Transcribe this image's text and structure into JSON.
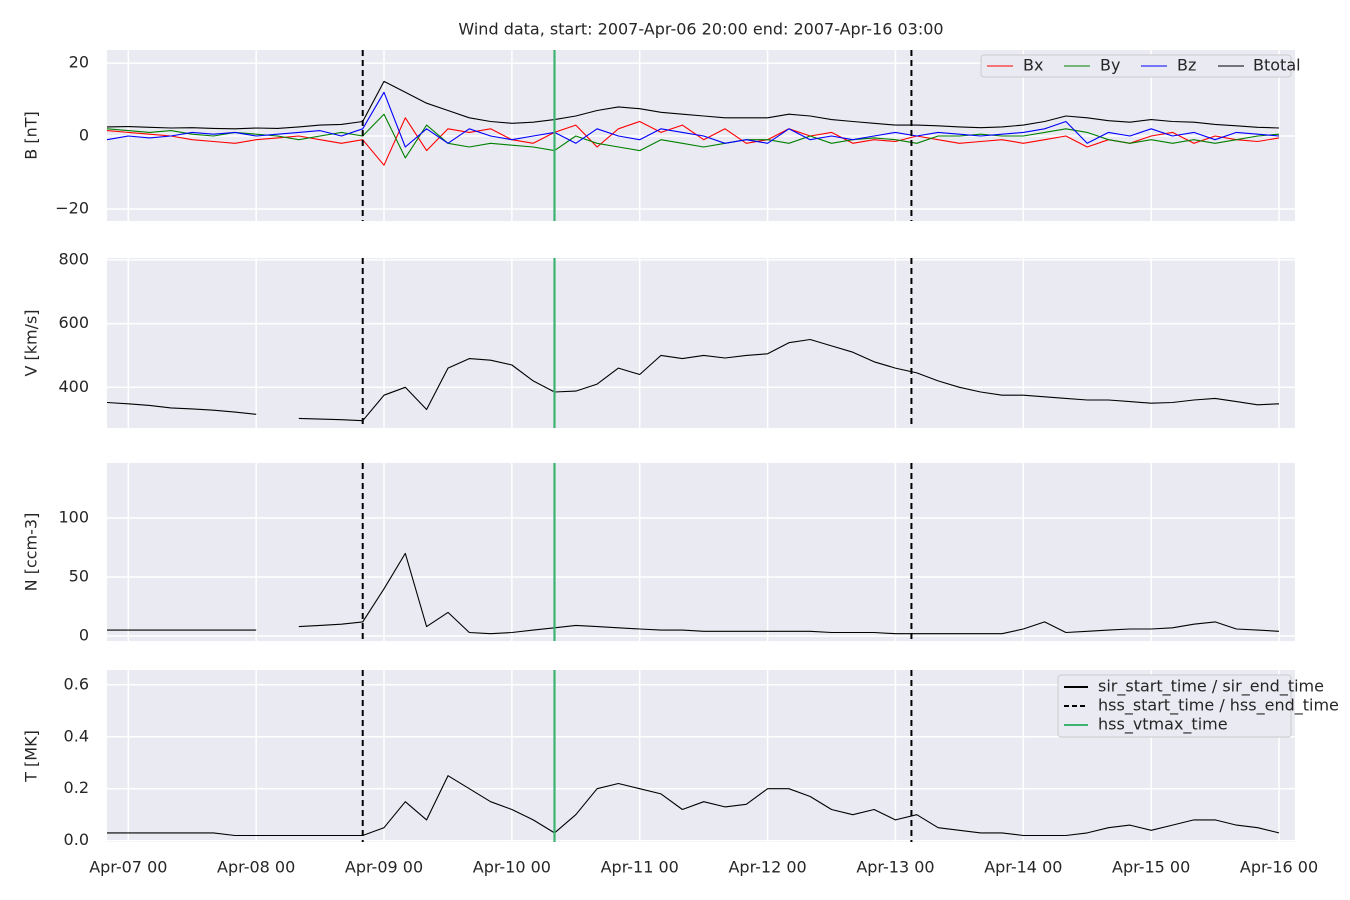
{
  "chart_data": [
    {
      "type": "line",
      "title": "Wind data, start: 2007-Apr-06 20:00  end: 2007-Apr-16 03:00",
      "y_label": "B [nT]",
      "xlim": [
        "2007-04-06T20:00",
        "2007-04-16T03:00"
      ],
      "ylim": [
        -23.3,
        23.6
      ],
      "yticks": [
        {
          "value": -20,
          "label": "−20"
        },
        0,
        20
      ],
      "grid": true,
      "legend": "upper right",
      "x": [
        "2007-04-06T20:00",
        "2007-04-07T00:00",
        "2007-04-07T04:00",
        "2007-04-07T08:00",
        "2007-04-07T12:00",
        "2007-04-07T16:00",
        "2007-04-07T20:00",
        "2007-04-08T00:00",
        "2007-04-08T04:00",
        "2007-04-08T08:00",
        "2007-04-08T12:00",
        "2007-04-08T16:00",
        "2007-04-08T20:00",
        "2007-04-09T00:00",
        "2007-04-09T04:00",
        "2007-04-09T08:00",
        "2007-04-09T12:00",
        "2007-04-09T16:00",
        "2007-04-09T20:00",
        "2007-04-10T00:00",
        "2007-04-10T04:00",
        "2007-04-10T08:00",
        "2007-04-10T12:00",
        "2007-04-10T16:00",
        "2007-04-10T20:00",
        "2007-04-11T00:00",
        "2007-04-11T04:00",
        "2007-04-11T08:00",
        "2007-04-11T12:00",
        "2007-04-11T16:00",
        "2007-04-11T20:00",
        "2007-04-12T00:00",
        "2007-04-12T04:00",
        "2007-04-12T08:00",
        "2007-04-12T12:00",
        "2007-04-12T16:00",
        "2007-04-12T20:00",
        "2007-04-13T00:00",
        "2007-04-13T04:00",
        "2007-04-13T08:00",
        "2007-04-13T12:00",
        "2007-04-13T16:00",
        "2007-04-13T20:00",
        "2007-04-14T00:00",
        "2007-04-14T04:00",
        "2007-04-14T08:00",
        "2007-04-14T12:00",
        "2007-04-14T16:00",
        "2007-04-14T20:00",
        "2007-04-15T00:00",
        "2007-04-15T04:00",
        "2007-04-15T08:00",
        "2007-04-15T12:00",
        "2007-04-15T16:00",
        "2007-04-15T20:00",
        "2007-04-16T00:00"
      ],
      "series": [
        {
          "name": "Bx",
          "color": "#ff0000",
          "values": [
            1.5,
            1,
            0.5,
            0,
            -1,
            -1.5,
            -2,
            -1,
            -0.5,
            0,
            -1,
            -2,
            -1,
            -8,
            5,
            -4,
            2,
            1,
            2,
            -1,
            -2,
            1,
            3,
            -3,
            2,
            4,
            1,
            3,
            -1,
            2,
            -2,
            -1,
            2,
            0,
            1,
            -2,
            -1,
            -1.5,
            0,
            -1,
            -2,
            -1.5,
            -1,
            -2,
            -1,
            0,
            -3,
            -1,
            -2,
            0,
            1,
            -2,
            0,
            -1,
            -1.5,
            -0.5
          ]
        },
        {
          "name": "By",
          "color": "#008000",
          "values": [
            2,
            1.5,
            1,
            1.5,
            0.5,
            0,
            1,
            0.5,
            0,
            -1,
            0,
            1,
            0,
            6,
            -6,
            3,
            -2,
            -3,
            -2,
            -2.5,
            -3,
            -4,
            0,
            -2,
            -3,
            -4,
            -1,
            -2,
            -3,
            -2,
            -1,
            -1,
            -2,
            0,
            -2,
            -1,
            -0.5,
            -1,
            -2,
            0,
            0,
            0.5,
            0,
            0,
            1,
            2,
            1,
            -1,
            -2,
            -1,
            -2,
            -1,
            -2,
            -1,
            0,
            0.5
          ]
        },
        {
          "name": "Bz",
          "color": "#0000ff",
          "values": [
            -1,
            0,
            -0.5,
            0,
            1,
            0.5,
            1,
            0,
            0.5,
            1,
            1.5,
            0,
            2,
            12,
            -3,
            2,
            -2,
            2,
            0,
            -1,
            0,
            1,
            -2,
            2,
            0,
            -1,
            2,
            1,
            0,
            -2,
            -1,
            -2,
            2,
            -1,
            0,
            -1,
            0,
            1,
            0,
            1,
            0.5,
            0,
            0.5,
            1,
            2,
            4,
            -2,
            1,
            0,
            2,
            0,
            1,
            -1,
            1,
            0.5,
            0
          ]
        },
        {
          "name": "Btotal",
          "color": "#000000",
          "values": [
            2.5,
            2.6,
            2.4,
            2.2,
            2.3,
            2.1,
            2.0,
            2.2,
            2.1,
            2.5,
            3.0,
            3.2,
            4.0,
            15,
            12,
            9,
            7,
            5,
            4,
            3.5,
            3.8,
            4.5,
            5.5,
            7,
            8,
            7.5,
            6.5,
            6,
            5.5,
            5,
            5,
            5,
            6,
            5.5,
            4.5,
            4,
            3.5,
            3,
            3,
            2.8,
            2.5,
            2.3,
            2.5,
            3,
            4,
            5.5,
            5,
            4.2,
            3.8,
            4.5,
            4,
            3.8,
            3.2,
            2.8,
            2.4,
            2.2
          ]
        }
      ],
      "vlines": [
        {
          "x": "2007-04-08T20:00",
          "color": "#000000",
          "dashed": true
        },
        {
          "x": "2007-04-10T08:00",
          "color": "#3cb371",
          "dashed": false
        },
        {
          "x": "2007-04-13T03:00",
          "color": "#000000",
          "dashed": true
        }
      ]
    },
    {
      "type": "line",
      "y_label": "V [km/s]",
      "xlim": [
        "2007-04-06T20:00",
        "2007-04-16T03:00"
      ],
      "ylim": [
        272,
        806
      ],
      "yticks": [
        400,
        600,
        800
      ],
      "grid": true,
      "x": [
        "2007-04-06T20:00",
        "2007-04-07T00:00",
        "2007-04-07T04:00",
        "2007-04-07T08:00",
        "2007-04-07T12:00",
        "2007-04-07T16:00",
        "2007-04-07T20:00",
        "2007-04-08T00:00",
        "2007-04-08T04:00",
        "2007-04-08T08:00",
        "2007-04-08T12:00",
        "2007-04-08T16:00",
        "2007-04-08T20:00",
        "2007-04-09T00:00",
        "2007-04-09T04:00",
        "2007-04-09T08:00",
        "2007-04-09T12:00",
        "2007-04-09T16:00",
        "2007-04-09T20:00",
        "2007-04-10T00:00",
        "2007-04-10T04:00",
        "2007-04-10T08:00",
        "2007-04-10T12:00",
        "2007-04-10T16:00",
        "2007-04-10T20:00",
        "2007-04-11T00:00",
        "2007-04-11T04:00",
        "2007-04-11T08:00",
        "2007-04-11T12:00",
        "2007-04-11T16:00",
        "2007-04-11T20:00",
        "2007-04-12T00:00",
        "2007-04-12T04:00",
        "2007-04-12T08:00",
        "2007-04-12T12:00",
        "2007-04-12T16:00",
        "2007-04-12T20:00",
        "2007-04-13T00:00",
        "2007-04-13T04:00",
        "2007-04-13T08:00",
        "2007-04-13T12:00",
        "2007-04-13T16:00",
        "2007-04-13T20:00",
        "2007-04-14T00:00",
        "2007-04-14T04:00",
        "2007-04-14T08:00",
        "2007-04-14T12:00",
        "2007-04-14T16:00",
        "2007-04-14T20:00",
        "2007-04-15T00:00",
        "2007-04-15T04:00",
        "2007-04-15T08:00",
        "2007-04-15T12:00",
        "2007-04-15T16:00",
        "2007-04-15T20:00",
        "2007-04-16T00:00"
      ],
      "series": [
        {
          "color": "#000000",
          "values": [
            352,
            348,
            343,
            335,
            332,
            328,
            322,
            315,
            null,
            302,
            300,
            298,
            295,
            375,
            400,
            330,
            460,
            490,
            485,
            470,
            420,
            385,
            388,
            410,
            460,
            440,
            500,
            490,
            500,
            492,
            500,
            505,
            540,
            550,
            530,
            510,
            480,
            460,
            445,
            420,
            400,
            385,
            375,
            375,
            370,
            365,
            360,
            360,
            355,
            350,
            352,
            360,
            365,
            355,
            345,
            348
          ]
        }
      ],
      "vlines": [
        {
          "x": "2007-04-08T20:00",
          "color": "#000000",
          "dashed": true
        },
        {
          "x": "2007-04-10T08:00",
          "color": "#3cb371",
          "dashed": false
        },
        {
          "x": "2007-04-13T03:00",
          "color": "#000000",
          "dashed": true
        }
      ]
    },
    {
      "type": "line",
      "y_label": "N [ccm-3]",
      "xlim": [
        "2007-04-06T20:00",
        "2007-04-16T03:00"
      ],
      "ylim": [
        -4.2,
        146.6
      ],
      "yticks": [
        0,
        50,
        100
      ],
      "grid": true,
      "x": [
        "2007-04-06T20:00",
        "2007-04-07T00:00",
        "2007-04-07T04:00",
        "2007-04-07T08:00",
        "2007-04-07T12:00",
        "2007-04-07T16:00",
        "2007-04-07T20:00",
        "2007-04-08T00:00",
        "2007-04-08T04:00",
        "2007-04-08T08:00",
        "2007-04-08T12:00",
        "2007-04-08T16:00",
        "2007-04-08T20:00",
        "2007-04-09T00:00",
        "2007-04-09T04:00",
        "2007-04-09T08:00",
        "2007-04-09T12:00",
        "2007-04-09T16:00",
        "2007-04-09T20:00",
        "2007-04-10T00:00",
        "2007-04-10T04:00",
        "2007-04-10T08:00",
        "2007-04-10T12:00",
        "2007-04-10T16:00",
        "2007-04-10T20:00",
        "2007-04-11T00:00",
        "2007-04-11T04:00",
        "2007-04-11T08:00",
        "2007-04-11T12:00",
        "2007-04-11T16:00",
        "2007-04-11T20:00",
        "2007-04-12T00:00",
        "2007-04-12T04:00",
        "2007-04-12T08:00",
        "2007-04-12T12:00",
        "2007-04-12T16:00",
        "2007-04-12T20:00",
        "2007-04-13T00:00",
        "2007-04-13T04:00",
        "2007-04-13T08:00",
        "2007-04-13T12:00",
        "2007-04-13T16:00",
        "2007-04-13T20:00",
        "2007-04-14T00:00",
        "2007-04-14T04:00",
        "2007-04-14T08:00",
        "2007-04-14T12:00",
        "2007-04-14T16:00",
        "2007-04-14T20:00",
        "2007-04-15T00:00",
        "2007-04-15T04:00",
        "2007-04-15T08:00",
        "2007-04-15T12:00",
        "2007-04-15T16:00",
        "2007-04-15T20:00",
        "2007-04-16T00:00"
      ],
      "series": [
        {
          "color": "#000000",
          "values": [
            5,
            5,
            5,
            5,
            5,
            5,
            5,
            5,
            null,
            8,
            9,
            10,
            12,
            40,
            70,
            8,
            20,
            3,
            2,
            3,
            5,
            7,
            9,
            8,
            7,
            6,
            5,
            5,
            4,
            4,
            4,
            4,
            4,
            4,
            3,
            3,
            3,
            2,
            2,
            2,
            2,
            2,
            2,
            6,
            12,
            3,
            4,
            5,
            6,
            6,
            7,
            10,
            12,
            6,
            5,
            4
          ]
        }
      ],
      "vlines": [
        {
          "x": "2007-04-08T20:00",
          "color": "#000000",
          "dashed": true
        },
        {
          "x": "2007-04-10T08:00",
          "color": "#3cb371",
          "dashed": false
        },
        {
          "x": "2007-04-13T03:00",
          "color": "#000000",
          "dashed": true
        }
      ]
    },
    {
      "type": "line",
      "y_label": "T [MK]",
      "xlim": [
        "2007-04-06T20:00",
        "2007-04-16T03:00"
      ],
      "ylim": [
        -0.005,
        0.657
      ],
      "yticks": [
        {
          "value": 0,
          "label": "0.0"
        },
        0.2,
        0.4,
        0.6
      ],
      "grid": true,
      "legend": "upper right",
      "xticks": [
        {
          "value": "2007-04-07T00:00",
          "label": "Apr-07 00"
        },
        {
          "value": "2007-04-08T00:00",
          "label": "Apr-08 00"
        },
        {
          "value": "2007-04-09T00:00",
          "label": "Apr-09 00"
        },
        {
          "value": "2007-04-10T00:00",
          "label": "Apr-10 00"
        },
        {
          "value": "2007-04-11T00:00",
          "label": "Apr-11 00"
        },
        {
          "value": "2007-04-12T00:00",
          "label": "Apr-12 00"
        },
        {
          "value": "2007-04-13T00:00",
          "label": "Apr-13 00"
        },
        {
          "value": "2007-04-14T00:00",
          "label": "Apr-14 00"
        },
        {
          "value": "2007-04-15T00:00",
          "label": "Apr-15 00"
        },
        {
          "value": "2007-04-16T00:00",
          "label": "Apr-16 00"
        }
      ],
      "x": [
        "2007-04-06T20:00",
        "2007-04-07T00:00",
        "2007-04-07T04:00",
        "2007-04-07T08:00",
        "2007-04-07T12:00",
        "2007-04-07T16:00",
        "2007-04-07T20:00",
        "2007-04-08T00:00",
        "2007-04-08T04:00",
        "2007-04-08T08:00",
        "2007-04-08T12:00",
        "2007-04-08T16:00",
        "2007-04-08T20:00",
        "2007-04-09T00:00",
        "2007-04-09T04:00",
        "2007-04-09T08:00",
        "2007-04-09T12:00",
        "2007-04-09T16:00",
        "2007-04-09T20:00",
        "2007-04-10T00:00",
        "2007-04-10T04:00",
        "2007-04-10T08:00",
        "2007-04-10T12:00",
        "2007-04-10T16:00",
        "2007-04-10T20:00",
        "2007-04-11T00:00",
        "2007-04-11T04:00",
        "2007-04-11T08:00",
        "2007-04-11T12:00",
        "2007-04-11T16:00",
        "2007-04-11T20:00",
        "2007-04-12T00:00",
        "2007-04-12T04:00",
        "2007-04-12T08:00",
        "2007-04-12T12:00",
        "2007-04-12T16:00",
        "2007-04-12T20:00",
        "2007-04-13T00:00",
        "2007-04-13T04:00",
        "2007-04-13T08:00",
        "2007-04-13T12:00",
        "2007-04-13T16:00",
        "2007-04-13T20:00",
        "2007-04-14T00:00",
        "2007-04-14T04:00",
        "2007-04-14T08:00",
        "2007-04-14T12:00",
        "2007-04-14T16:00",
        "2007-04-14T20:00",
        "2007-04-15T00:00",
        "2007-04-15T04:00",
        "2007-04-15T08:00",
        "2007-04-15T12:00",
        "2007-04-15T16:00",
        "2007-04-15T20:00",
        "2007-04-16T00:00"
      ],
      "series": [
        {
          "color": "#000000",
          "values": [
            0.03,
            0.03,
            0.03,
            0.03,
            0.03,
            0.03,
            0.02,
            0.02,
            0.02,
            0.02,
            0.02,
            0.02,
            0.02,
            0.05,
            0.15,
            0.08,
            0.25,
            0.2,
            0.15,
            0.12,
            0.08,
            0.03,
            0.1,
            0.2,
            0.22,
            0.2,
            0.18,
            0.12,
            0.15,
            0.13,
            0.14,
            0.2,
            0.2,
            0.17,
            0.12,
            0.1,
            0.12,
            0.08,
            0.1,
            0.05,
            0.04,
            0.03,
            0.03,
            0.02,
            0.02,
            0.02,
            0.03,
            0.05,
            0.06,
            0.04,
            0.06,
            0.08,
            0.08,
            0.06,
            0.05,
            0.03
          ]
        }
      ],
      "vlines": [
        {
          "x": "2007-04-08T20:00",
          "color": "#000000",
          "dashed": true
        },
        {
          "x": "2007-04-10T08:00",
          "color": "#3cb371",
          "dashed": false
        },
        {
          "x": "2007-04-13T03:00",
          "color": "#000000",
          "dashed": true
        }
      ],
      "legend_entries": [
        {
          "name": "sir_start_time / sir_end_time",
          "color": "#000000",
          "dashed": false
        },
        {
          "name": "hss_start_time / hss_end_time",
          "color": "#000000",
          "dashed": true
        },
        {
          "name": "hss_vtmax_time",
          "color": "#3cb371",
          "dashed": false
        }
      ]
    }
  ]
}
